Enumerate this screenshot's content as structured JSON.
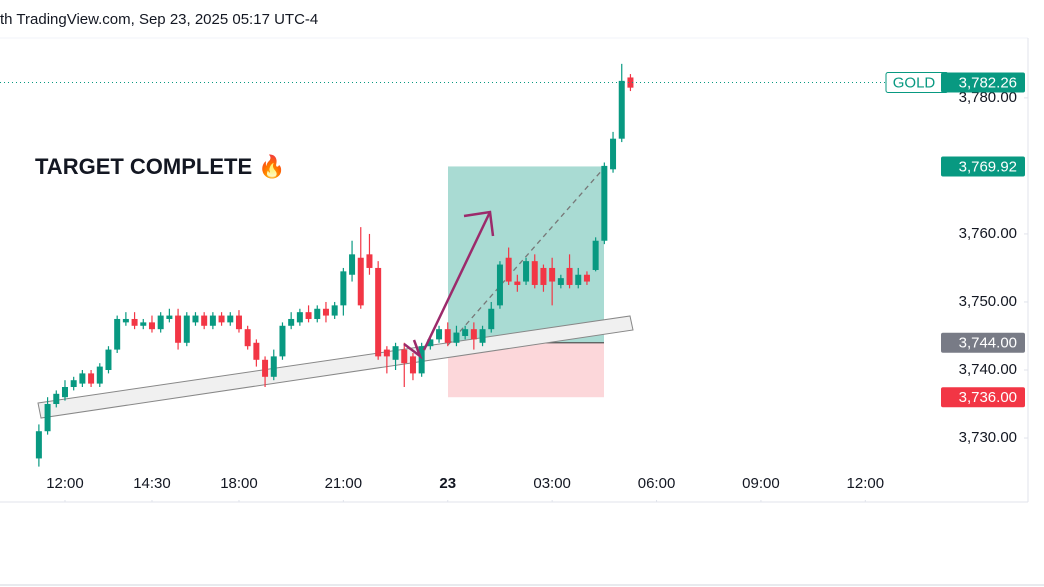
{
  "header": {
    "text": "th TradingView.com, Sep 23, 2025 05:17 UTC-4"
  },
  "chart_data": {
    "type": "candlestick",
    "symbol": "GOLD",
    "annotation": "TARGET COMPLETE 🔥",
    "up_color": "#089981",
    "down_color": "#f23645",
    "x": [
      -3,
      -2,
      -1,
      0,
      1,
      2,
      3,
      4,
      5,
      6,
      7,
      8,
      9,
      10,
      11,
      12,
      13,
      14,
      15,
      16,
      17,
      18,
      19,
      20,
      21,
      22,
      23,
      24,
      25,
      26,
      27,
      28,
      29,
      30,
      31,
      32,
      33,
      34,
      35,
      36,
      37,
      38,
      39,
      40,
      41,
      42,
      43,
      44,
      45,
      46,
      47,
      48,
      49,
      50,
      51,
      52,
      53,
      54,
      55,
      56,
      57,
      58,
      59,
      60,
      61,
      62,
      63,
      64,
      65
    ],
    "open": [
      3727,
      3731,
      3735,
      3736,
      3737.5,
      3738,
      3739.5,
      3738,
      3740,
      3743,
      3747,
      3747.5,
      3746.5,
      3747,
      3746,
      3747.5,
      3748,
      3744,
      3747,
      3748,
      3746.5,
      3748,
      3747,
      3748,
      3746,
      3744,
      3741.5,
      3739,
      3742,
      3746.5,
      3747,
      3748.5,
      3747.5,
      3749,
      3748,
      3749.5,
      3754,
      3756.5,
      3757,
      3755,
      3743,
      3741.5,
      3743,
      3742,
      3739.5,
      3743.5,
      3744.5,
      3746,
      3744,
      3745,
      3746,
      3744,
      3746,
      3749.5,
      3756.5,
      3753,
      3753,
      3756,
      3755,
      3755,
      3752.5,
      3755,
      3752.5,
      3754,
      3754.7,
      3759,
      3769.5,
      3774,
      3783
    ],
    "high": [
      3732,
      3736,
      3737,
      3738.5,
      3739,
      3740,
      3740,
      3741,
      3743.5,
      3748,
      3748.5,
      3748.5,
      3747.5,
      3748,
      3748.5,
      3749,
      3749,
      3748.5,
      3748.5,
      3748.5,
      3748.5,
      3748.5,
      3748.5,
      3748.8,
      3746.5,
      3744.5,
      3742,
      3743,
      3747,
      3748.5,
      3749,
      3749.5,
      3749.5,
      3750,
      3750,
      3755,
      3759,
      3761,
      3760,
      3756,
      3743.5,
      3744,
      3744,
      3742.5,
      3744,
      3745,
      3746.5,
      3747,
      3746.5,
      3746.5,
      3747,
      3746.5,
      3750,
      3756,
      3758,
      3754,
      3756.5,
      3757,
      3755.5,
      3756.5,
      3754,
      3757,
      3755,
      3754.5,
      3759.5,
      3770.5,
      3775,
      3785,
      3783.5
    ],
    "low": [
      3725.8,
      3730.5,
      3734.5,
      3735.5,
      3737,
      3737.5,
      3737.5,
      3737.5,
      3739.5,
      3742.5,
      3746.5,
      3746,
      3746,
      3745.5,
      3745.5,
      3747,
      3743,
      3743.5,
      3746.5,
      3746,
      3746,
      3746.5,
      3746.5,
      3745.5,
      3743,
      3740.5,
      3737.5,
      3738.5,
      3741.5,
      3746,
      3746.5,
      3747,
      3747,
      3747,
      3747.5,
      3748,
      3753,
      3749,
      3754,
      3741.5,
      3739.5,
      3740,
      3737.5,
      3738.5,
      3739,
      3743,
      3744,
      3743.5,
      3743.5,
      3744.5,
      3743,
      3743.5,
      3745.5,
      3749,
      3752.5,
      3751.5,
      3752.5,
      3752,
      3751.5,
      3749.5,
      3752,
      3752,
      3752,
      3752.5,
      3754.5,
      3758.5,
      3769,
      3773.5,
      3781
    ],
    "close": [
      3731,
      3735,
      3736.5,
      3737.5,
      3738.5,
      3739.5,
      3738,
      3740.5,
      3743,
      3747.5,
      3747.5,
      3746.5,
      3747,
      3746,
      3748,
      3748,
      3744,
      3748,
      3748,
      3746.5,
      3748,
      3747,
      3748,
      3746,
      3743.5,
      3741.5,
      3739,
      3742,
      3746.5,
      3747.5,
      3748.5,
      3747.5,
      3749,
      3748,
      3749.5,
      3754.5,
      3757,
      3749.5,
      3755,
      3742,
      3742,
      3743.5,
      3741,
      3739.5,
      3743.5,
      3744.5,
      3746,
      3744,
      3745.5,
      3746,
      3744.5,
      3746,
      3749,
      3755.5,
      3753,
      3752.5,
      3756,
      3752.5,
      3752.5,
      3753,
      3753.5,
      3752.5,
      3754,
      3753,
      3759,
      3770,
      3774,
      3782.5,
      3781.5
    ],
    "xlim": [
      -7.47,
      110.7
    ],
    "xticks": [
      {
        "value": 0,
        "label": "12:00"
      },
      {
        "value": 10,
        "label": "14:30"
      },
      {
        "value": 20,
        "label": "18:00"
      },
      {
        "value": 32,
        "label": "21:00"
      },
      {
        "value": 44,
        "label": "23"
      },
      {
        "value": 56,
        "label": "03:00"
      },
      {
        "value": 68,
        "label": "06:00"
      },
      {
        "value": 80,
        "label": "09:00"
      },
      {
        "value": 92,
        "label": "12:00"
      }
    ],
    "ylim": [
      3725.3,
      3788.8
    ],
    "yticks": [
      {
        "value": 3730,
        "label": "3,730.00"
      },
      {
        "value": 3740,
        "label": "3,740.00"
      },
      {
        "value": 3750,
        "label": "3,750.00"
      },
      {
        "value": 3760,
        "label": "3,760.00"
      },
      {
        "value": 3780,
        "label": "3,780.00"
      }
    ],
    "last_price": {
      "value": 3782.26,
      "label": "3,782.26"
    },
    "position": {
      "target": {
        "value": 3769.92,
        "label": "3,769.92"
      },
      "entry": {
        "value": 3744,
        "label": "3,744.00"
      },
      "stop": {
        "value": 3736,
        "label": "3,736.00"
      }
    }
  }
}
